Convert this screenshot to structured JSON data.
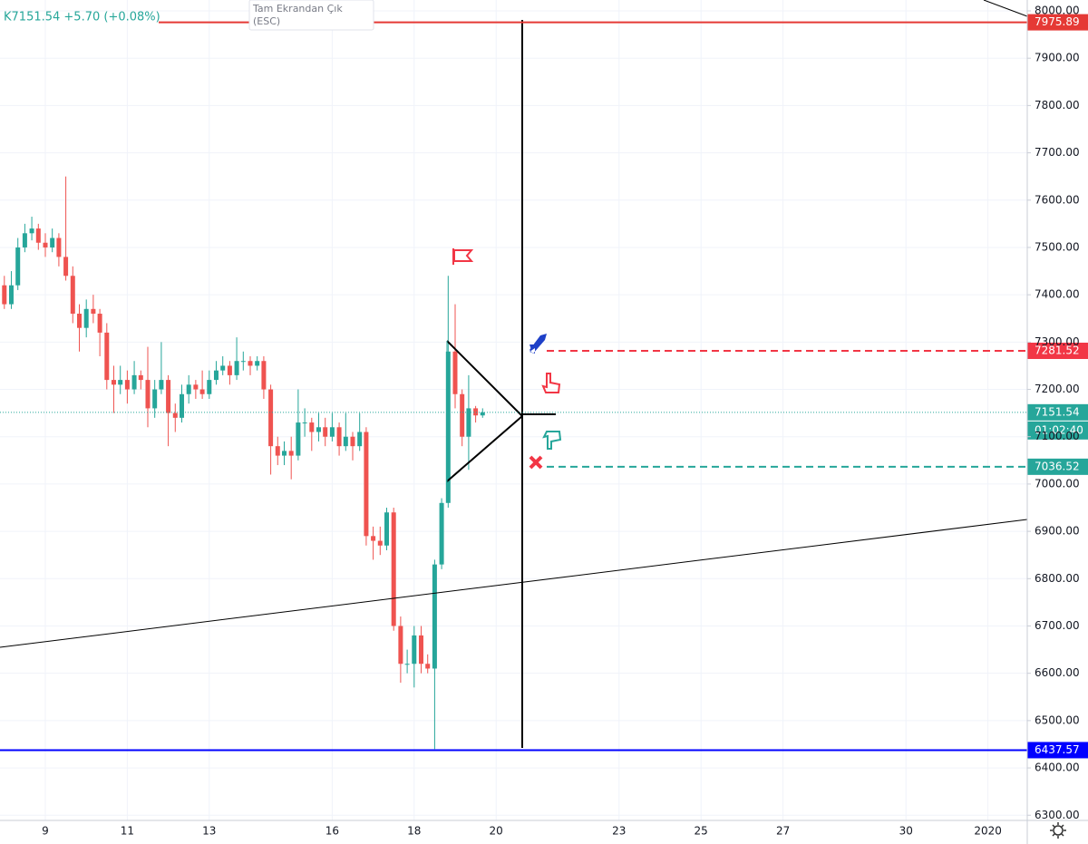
{
  "chart_data": {
    "type": "candlestick",
    "symbol_info": "K7151.54 +5.70 (+0.08%)",
    "tooltip": [
      "Tam Ekrandan Çık",
      "(ESC)"
    ],
    "up_color": "#26a69a",
    "down_color": "#ef5350",
    "grid": true,
    "xlim": [
      7.894,
      32.96
    ],
    "ylim": [
      6289,
      8023
    ],
    "xticks": [
      9,
      11,
      13,
      16,
      18,
      20,
      23,
      25,
      27,
      30,
      {
        "value": 32,
        "label": "2020"
      }
    ],
    "yticks": [
      {
        "value": 6300,
        "label": "6300.00"
      },
      {
        "value": 6400,
        "label": "6400.00"
      },
      {
        "value": 6500,
        "label": "6500.00"
      },
      {
        "value": 6600,
        "label": "6600.00"
      },
      {
        "value": 6700,
        "label": "6700.00"
      },
      {
        "value": 6800,
        "label": "6800.00"
      },
      {
        "value": 6900,
        "label": "6900.00"
      },
      {
        "value": 7000,
        "label": "7000.00"
      },
      {
        "value": 7100,
        "label": "7100.00"
      },
      {
        "value": 7200,
        "label": "7200.00"
      },
      {
        "value": 7300,
        "label": "7300.00"
      },
      {
        "value": 7400,
        "label": "7400.00"
      },
      {
        "value": 7500,
        "label": "7500.00"
      },
      {
        "value": 7600,
        "label": "7600.00"
      },
      {
        "value": 7700,
        "label": "7700.00"
      },
      {
        "value": 7800,
        "label": "7800.00"
      },
      {
        "value": 7900,
        "label": "7900.00"
      },
      {
        "value": 8000,
        "label": "8000.00"
      }
    ],
    "x": [
      8,
      8.17,
      8.33,
      8.5,
      8.67,
      8.83,
      9,
      9.17,
      9.33,
      9.5,
      9.67,
      9.83,
      10,
      10.17,
      10.33,
      10.5,
      10.67,
      10.83,
      11,
      11.17,
      11.33,
      11.5,
      11.67,
      11.83,
      12,
      12.17,
      12.33,
      12.5,
      12.67,
      12.83,
      13,
      13.17,
      13.33,
      13.5,
      13.67,
      13.83,
      14,
      14.17,
      14.33,
      14.5,
      14.67,
      14.83,
      15,
      15.17,
      15.33,
      15.5,
      15.67,
      15.83,
      16,
      16.17,
      16.33,
      16.5,
      16.67,
      16.83,
      17,
      17.17,
      17.33,
      17.5,
      17.67,
      17.83,
      18,
      18.17,
      18.33,
      18.5,
      18.67,
      18.83,
      19,
      19.17,
      19.33,
      19.5,
      19.67
    ],
    "open": [
      7420,
      7380,
      7420,
      7500,
      7530,
      7540,
      7510,
      7500,
      7520,
      7480,
      7440,
      7360,
      7330,
      7370,
      7360,
      7320,
      7220,
      7210,
      7220,
      7200,
      7230,
      7220,
      7160,
      7200,
      7220,
      7150,
      7140,
      7190,
      7210,
      7200,
      7190,
      7220,
      7240,
      7250,
      7230,
      7260,
      7260,
      7250,
      7260,
      7200,
      7080,
      7060,
      7070,
      7060,
      7130,
      7130,
      7110,
      7120,
      7100,
      7120,
      7080,
      7100,
      7080,
      7110,
      6890,
      6880,
      6870,
      6940,
      6700,
      6620,
      6620,
      6680,
      6620,
      6610,
      6830,
      6960,
      7280,
      7190,
      7100,
      7160,
      7145
    ],
    "high": [
      7440,
      7450,
      7520,
      7550,
      7565,
      7550,
      7530,
      7540,
      7530,
      7650,
      7460,
      7380,
      7390,
      7400,
      7370,
      7340,
      7250,
      7250,
      7240,
      7260,
      7240,
      7290,
      7220,
      7300,
      7230,
      7170,
      7210,
      7230,
      7220,
      7240,
      7240,
      7260,
      7270,
      7260,
      7310,
      7280,
      7270,
      7270,
      7270,
      7210,
      7100,
      7090,
      7100,
      7200,
      7160,
      7140,
      7150,
      7140,
      7150,
      7130,
      7150,
      7110,
      7150,
      7120,
      6910,
      6910,
      6950,
      6950,
      6720,
      6650,
      6700,
      6700,
      6640,
      6840,
      6970,
      7440,
      7380,
      7200,
      7230,
      7165,
      7160
    ],
    "low": [
      7370,
      7370,
      7410,
      7490,
      7515,
      7495,
      7480,
      7490,
      7460,
      7430,
      7340,
      7280,
      7310,
      7340,
      7270,
      7200,
      7150,
      7190,
      7170,
      7190,
      7200,
      7120,
      7140,
      7190,
      7080,
      7110,
      7130,
      7170,
      7180,
      7180,
      7180,
      7210,
      7230,
      7210,
      7220,
      7240,
      7230,
      7240,
      7180,
      7020,
      7040,
      7040,
      7010,
      7050,
      7100,
      7070,
      7090,
      7080,
      7090,
      7060,
      7070,
      7050,
      7070,
      6870,
      6840,
      6850,
      6860,
      6690,
      6580,
      6600,
      6570,
      6600,
      6600,
      6440,
      6820,
      6950,
      7160,
      7080,
      7030,
      7130,
      7140
    ],
    "close": [
      7380,
      7420,
      7500,
      7530,
      7540,
      7510,
      7500,
      7520,
      7480,
      7440,
      7360,
      7330,
      7370,
      7360,
      7320,
      7220,
      7210,
      7220,
      7200,
      7230,
      7220,
      7160,
      7200,
      7220,
      7150,
      7140,
      7190,
      7210,
      7200,
      7190,
      7220,
      7240,
      7250,
      7230,
      7260,
      7260,
      7250,
      7260,
      7200,
      7080,
      7060,
      7070,
      7060,
      7130,
      7130,
      7110,
      7120,
      7100,
      7120,
      7080,
      7100,
      7080,
      7110,
      6890,
      6880,
      6870,
      6940,
      6700,
      6620,
      6620,
      6680,
      6620,
      6610,
      6830,
      6960,
      7280,
      7190,
      7100,
      7160,
      7145,
      7151.54
    ],
    "levels": [
      {
        "value": 7975.89,
        "color": "#e53935",
        "style": "solid"
      },
      {
        "value": 7281.52,
        "color": "#f23645",
        "style": "dashed"
      },
      {
        "value": 7151.54,
        "color": "#26a69a",
        "style": "dotted"
      },
      {
        "value": 7036.52,
        "color": "#26a69a",
        "style": "dashed"
      },
      {
        "value": 6437.57,
        "color": "#0000ff",
        "style": "solid"
      }
    ],
    "countdown": "01:02:40"
  }
}
